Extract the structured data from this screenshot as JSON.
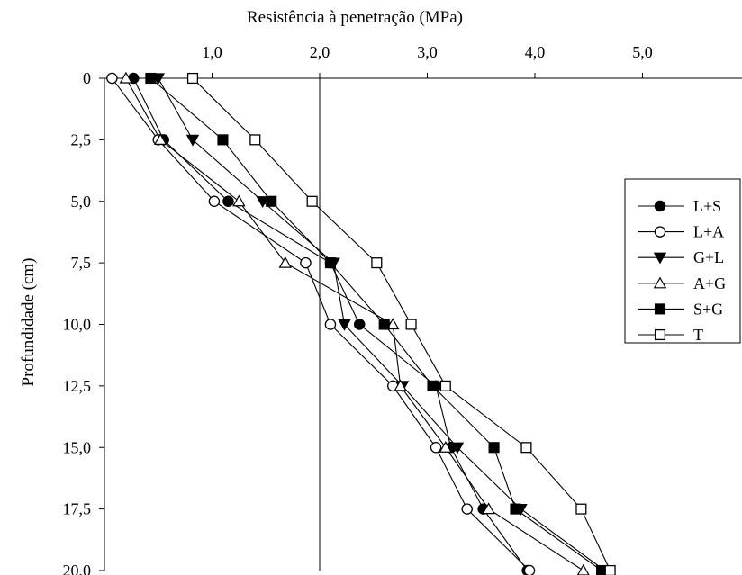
{
  "chart_data": {
    "type": "line",
    "title": "Resistência à penetração (MPa)",
    "xlabel": "Resistência à penetração (MPa)",
    "ylabel": "Profundidade (cm)",
    "x_axis_position": "top",
    "y_inverted": true,
    "xlim": [
      0,
      5.8
    ],
    "ylim": [
      0,
      20
    ],
    "x_ticks": [
      1.0,
      2.0,
      3.0,
      4.0,
      5.0
    ],
    "x_tick_labels": [
      "1,0",
      "2,0",
      "3,0",
      "4,0",
      "5,0"
    ],
    "y_ticks": [
      0,
      2.5,
      5.0,
      7.5,
      10.0,
      12.5,
      15.0,
      17.5,
      20.0
    ],
    "y_tick_labels": [
      "0",
      "2,5",
      "5,0",
      "7,5",
      "10,0",
      "12,5",
      "15,0",
      "17,5",
      "20,0"
    ],
    "reference_line_x": 2.0,
    "grid": false,
    "legend_position": "right",
    "y": [
      0,
      2.5,
      5.0,
      7.5,
      10.0,
      12.5,
      15.0,
      17.5,
      20.0
    ],
    "series": [
      {
        "name": "L+S",
        "marker": "circle-filled",
        "x": [
          0.27,
          0.55,
          1.15,
          2.1,
          2.37,
          3.08,
          3.22,
          3.52,
          3.93
        ]
      },
      {
        "name": "L+A",
        "marker": "circle-open",
        "x": [
          0.07,
          0.5,
          1.02,
          1.87,
          2.1,
          2.68,
          3.08,
          3.37,
          3.95
        ]
      },
      {
        "name": "G+L",
        "marker": "triangle-down-filled",
        "x": [
          0.5,
          0.82,
          1.47,
          2.13,
          2.23,
          2.77,
          3.28,
          3.87,
          4.65
        ]
      },
      {
        "name": "A+G",
        "marker": "triangle-up-open",
        "x": [
          0.2,
          0.52,
          1.25,
          1.68,
          2.68,
          2.75,
          3.17,
          3.57,
          4.45
        ]
      },
      {
        "name": "S+G",
        "marker": "square-filled",
        "x": [
          0.43,
          1.1,
          1.55,
          2.1,
          2.6,
          3.05,
          3.62,
          3.82,
          4.62
        ]
      },
      {
        "name": "T",
        "marker": "square-open",
        "x": [
          0.82,
          1.4,
          1.93,
          2.53,
          2.85,
          3.17,
          3.92,
          4.43,
          4.7
        ]
      }
    ]
  }
}
